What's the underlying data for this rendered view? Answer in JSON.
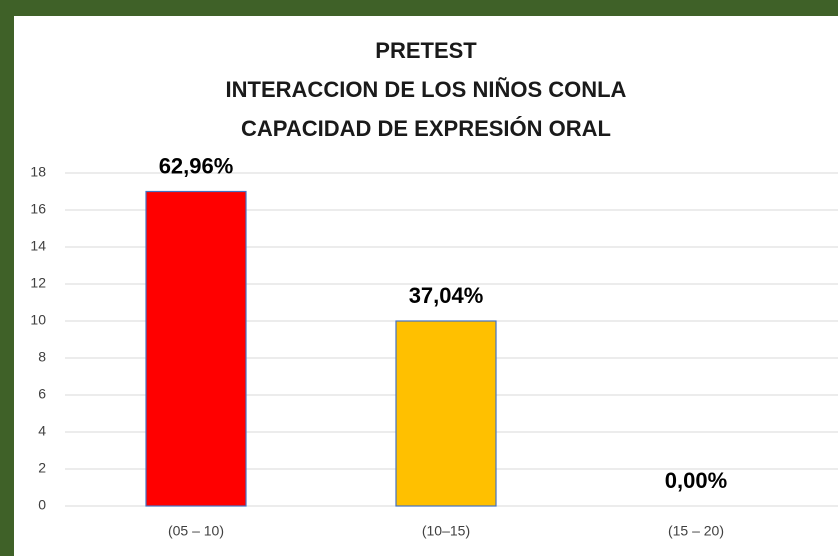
{
  "chart_data": {
    "type": "bar",
    "title": [
      "PRETEST",
      "INTERACCION  DE LOS NIÑOS CONLA",
      "CAPACIDAD  DE EXPRESIÓN  ORAL"
    ],
    "categories": [
      "(05 – 10)",
      "(10–15)",
      "(15 – 20)"
    ],
    "values": [
      17,
      10,
      0
    ],
    "annotations": [
      "62,96%",
      "37,04%",
      "0,00%"
    ],
    "colors": [
      "#ff0000",
      "#ffc000",
      "#ffc000"
    ],
    "ylim": [
      0,
      18
    ],
    "yticks": [
      0,
      2,
      4,
      6,
      8,
      10,
      12,
      14,
      16,
      18
    ],
    "grid": true
  }
}
